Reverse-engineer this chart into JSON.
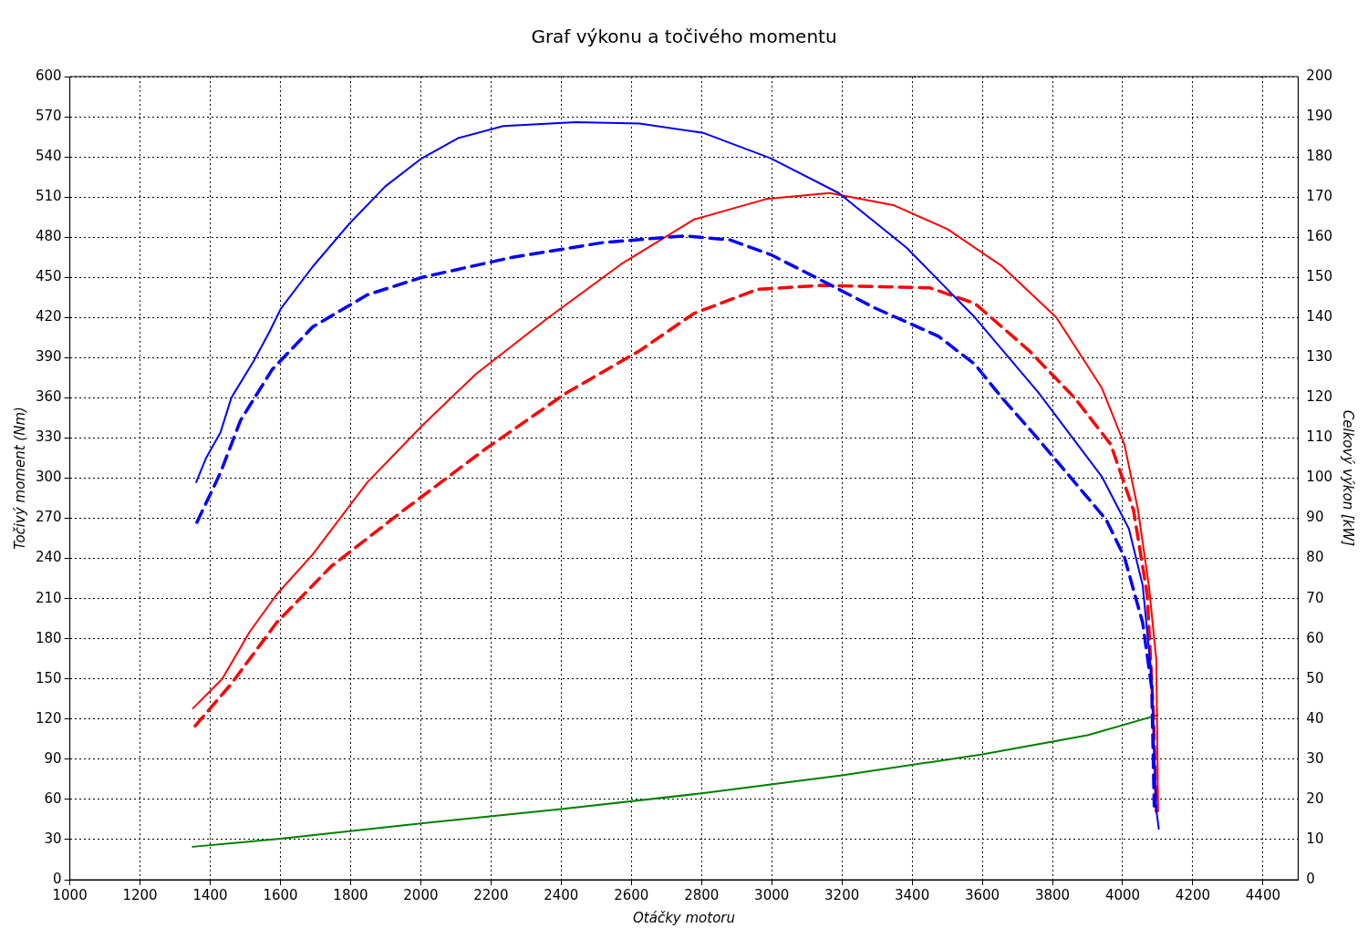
{
  "chart_data": {
    "type": "line",
    "title": "Graf výkonu a točivého momentu",
    "xlabel": "Otáčky motoru",
    "ylabel": "Točivý moment (Nm)",
    "y2label": "Celkový výkon [kW]",
    "xlim": [
      1000,
      4500
    ],
    "xticks": [
      1000,
      1200,
      1400,
      1600,
      1800,
      2000,
      2200,
      2400,
      2600,
      2800,
      3000,
      3200,
      3400,
      3600,
      3800,
      4000,
      4200,
      4400
    ],
    "ylim": [
      0,
      600
    ],
    "yticks": [
      0,
      30,
      60,
      90,
      120,
      150,
      180,
      210,
      240,
      270,
      300,
      330,
      360,
      390,
      420,
      450,
      480,
      510,
      540,
      570,
      600
    ],
    "y2lim": [
      0,
      200
    ],
    "y2ticks": [
      0,
      10,
      20,
      30,
      40,
      50,
      60,
      70,
      80,
      90,
      100,
      110,
      120,
      130,
      140,
      150,
      160,
      170,
      180,
      190,
      200
    ],
    "grid": true,
    "legend": false,
    "marker": "none",
    "series": [
      {
        "color": "#0000ff",
        "line_style": "solid",
        "x": [
          1360,
          1388,
          1429,
          1460,
          1525,
          1568,
          1602,
          1692,
          1796,
          1899,
          2003,
          2106,
          2235,
          2442,
          2623,
          2804,
          2997,
          3191,
          3385,
          3579,
          3760,
          3941,
          4018,
          4057,
          4083,
          4096,
          4103
        ],
        "values": [
          297,
          315,
          334,
          360,
          388,
          409,
          427,
          458,
          490,
          518,
          539,
          554,
          563,
          566,
          565,
          558,
          539,
          513,
          472,
          420,
          364,
          301,
          262,
          220,
          150,
          52,
          38
        ]
      },
      {
        "color": "#0000ff",
        "line_style": "dashed",
        "x": [
          1362,
          1429,
          1486,
          1576,
          1692,
          1848,
          2003,
          2261,
          2519,
          2752,
          2881,
          2997,
          3140,
          3295,
          3475,
          3579,
          3656,
          3760,
          3863,
          3953,
          4005,
          4057,
          4083,
          4090
        ],
        "values": [
          267,
          304,
          343,
          381,
          413,
          437,
          450,
          465,
          476,
          481,
          478,
          467,
          448,
          427,
          406,
          385,
          360,
          329,
          297,
          269,
          241,
          192,
          143,
          55
        ]
      },
      {
        "color": "#ff0000",
        "line_style": "solid",
        "axis": "y2",
        "x": [
          1351,
          1434,
          1512,
          1589,
          1692,
          1848,
          2003,
          2158,
          2364,
          2571,
          2778,
          2984,
          3165,
          3346,
          3501,
          3656,
          3811,
          3941,
          4005,
          4044,
          4075,
          4096,
          4101
        ],
        "values": [
          42.7,
          50,
          61.7,
          71,
          81,
          99,
          113,
          126,
          140,
          153.3,
          164.4,
          169.5,
          171,
          168,
          162,
          152.8,
          140,
          122.4,
          108.4,
          92,
          73,
          54.7,
          17
        ]
      },
      {
        "color": "#ff0000",
        "line_style": "dashed",
        "axis": "y2",
        "x": [
          1357,
          1460,
          1589,
          1744,
          1951,
          2183,
          2416,
          2623,
          2778,
          2959,
          3140,
          3450,
          3579,
          3734,
          3863,
          3966,
          4031,
          4070,
          4088,
          4096
        ],
        "values": [
          38.3,
          48.8,
          64,
          78,
          92,
          107.2,
          121.3,
          131.7,
          141,
          147,
          148,
          147.4,
          143.5,
          131.7,
          120,
          108.4,
          92,
          71,
          40.7,
          17
        ]
      },
      {
        "color": "#008000",
        "line_style": "solid",
        "axis": "y2",
        "x": [
          1350,
          1600,
          2000,
          2400,
          2800,
          3200,
          3600,
          3900,
          4100
        ],
        "values": [
          8.2,
          10.2,
          14,
          17.6,
          21.5,
          26,
          31.2,
          36,
          41
        ]
      }
    ]
  }
}
